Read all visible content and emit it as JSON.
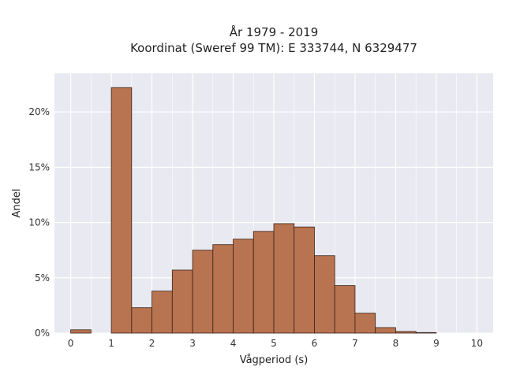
{
  "chart_data": {
    "type": "bar",
    "title_lines": [
      "År 1979 - 2019",
      "Koordinat (Sweref 99 TM): E 333744, N 6329477"
    ],
    "xlabel": "Vågperiod (s)",
    "ylabel": "Andel",
    "bin_width": 0.5,
    "bins_start": [
      0,
      0.5,
      1,
      1.5,
      2,
      2.5,
      3,
      3.5,
      4,
      4.5,
      5,
      5.5,
      6,
      6.5,
      7,
      7.5,
      8,
      8.5,
      9,
      9.5
    ],
    "values": [
      0.3,
      0,
      22.2,
      2.3,
      3.8,
      5.7,
      7.5,
      8.0,
      8.5,
      9.2,
      9.9,
      9.6,
      7.0,
      4.3,
      1.8,
      0.5,
      0.15,
      0.05,
      0,
      0
    ],
    "xlim": [
      -0.4,
      10.4
    ],
    "ylim": [
      0,
      23.5
    ],
    "xticks": [
      0,
      1,
      2,
      3,
      4,
      5,
      6,
      7,
      8,
      9,
      10
    ],
    "yticks": [
      0,
      5,
      10,
      15,
      20
    ],
    "ytick_labels": [
      "0%",
      "5%",
      "10%",
      "15%",
      "20%"
    ],
    "grid": true,
    "colors": {
      "bar_fill": "#B87350",
      "bar_stroke": "#3a2418",
      "plot_background": "#E9E9F1",
      "grid": "#ffffff"
    }
  }
}
